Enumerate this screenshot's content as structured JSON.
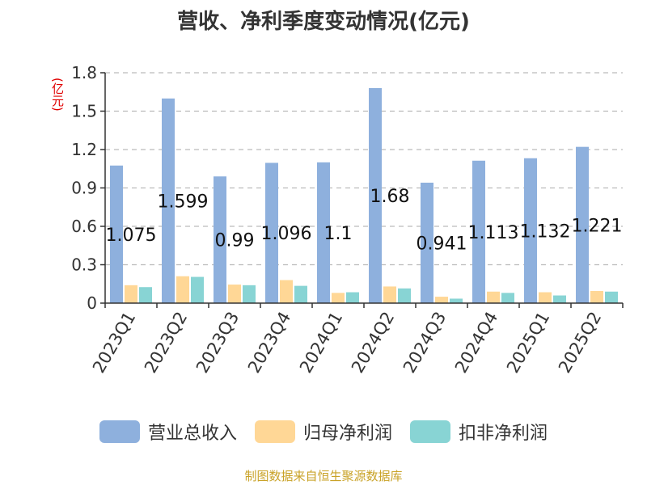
{
  "chart_data": {
    "type": "bar",
    "title": "营收、净利季度变动情况(亿元)",
    "ylabel": "(亿元)",
    "xlabel": "",
    "categories": [
      "2023Q1",
      "2023Q2",
      "2023Q3",
      "2023Q4",
      "2024Q1",
      "2024Q2",
      "2024Q3",
      "2024Q4",
      "2025Q1",
      "2025Q2"
    ],
    "ylim": [
      0,
      1.8
    ],
    "yticks": [
      "0",
      "0.3",
      "0.6",
      "0.9",
      "1.2",
      "1.5",
      "1.8"
    ],
    "grid": true,
    "legend_position": "bottom",
    "series": [
      {
        "name": "营业总收入",
        "color": "#8eb0dd",
        "values": [
          1.075,
          1.599,
          0.99,
          1.096,
          1.1,
          1.68,
          0.941,
          1.113,
          1.132,
          1.221
        ]
      },
      {
        "name": "归母净利润",
        "color": "#ffd796",
        "values": [
          0.14,
          0.21,
          0.145,
          0.18,
          0.08,
          0.13,
          0.05,
          0.09,
          0.085,
          0.095
        ]
      },
      {
        "name": "扣非净利润",
        "color": "#88d4d4",
        "values": [
          0.125,
          0.205,
          0.14,
          0.135,
          0.085,
          0.115,
          0.035,
          0.08,
          0.06,
          0.09
        ]
      }
    ],
    "data_labels": [
      "1.075",
      "1.599",
      "0.99",
      "1.096",
      "1.1",
      "1.68",
      "0.941",
      "1.113",
      "1.132",
      "1.221"
    ]
  },
  "footer": "制图数据来自恒生聚源数据库"
}
